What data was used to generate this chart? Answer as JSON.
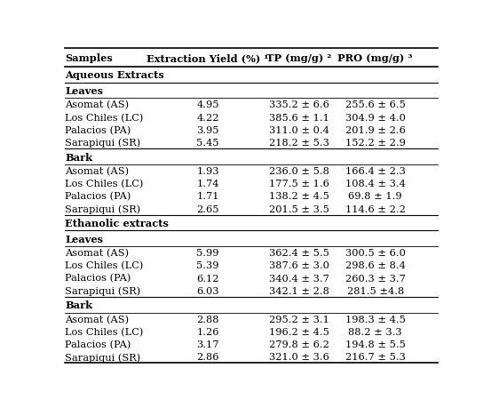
{
  "col_headers": [
    "Samples",
    "Extraction Yield (%) ¹",
    "TP (mg/g) ²",
    "PRO (mg/g) ³"
  ],
  "rows": [
    [
      "Asomat (AS)",
      "4.95",
      "335.2 ± 6.6",
      "255.6 ± 6.5"
    ],
    [
      "Los Chiles (LC)",
      "4.22",
      "385.6 ± 1.1",
      "304.9 ± 4.0"
    ],
    [
      "Palacios (PA)",
      "3.95",
      "311.0 ± 0.4",
      "201.9 ± 2.6"
    ],
    [
      "Sarapiqui (SR)",
      "5.45",
      "218.2 ± 5.3",
      "152.2 ± 2.9"
    ],
    [
      "Asomat (AS)",
      "1.93",
      "236.0 ± 5.8",
      "166.4 ± 2.3"
    ],
    [
      "Los Chiles (LC)",
      "1.74",
      "177.5 ± 1.6",
      "108.4 ± 3.4"
    ],
    [
      "Palacios (PA)",
      "1.71",
      "138.2 ± 4.5",
      "69.8 ± 1.9"
    ],
    [
      "Sarapiqui (SR)",
      "2.65",
      "201.5 ± 3.5",
      "114.6 ± 2.2"
    ],
    [
      "Asomat (AS)",
      "5.99",
      "362.4 ± 5.5",
      "300.5 ± 6.0"
    ],
    [
      "Los Chiles (LC)",
      "5.39",
      "387.6 ± 3.0",
      "298.6 ± 8.4"
    ],
    [
      "Palacios (PA)",
      "6.12",
      "340.4 ± 3.7",
      "260.3 ± 3.7"
    ],
    [
      "Sarapiqui (SR)",
      "6.03",
      "342.1 ± 2.8",
      "281.5 ±4.8"
    ],
    [
      "Asomat (AS)",
      "2.88",
      "295.2 ± 3.1",
      "198.3 ± 4.5"
    ],
    [
      "Los Chiles (LC)",
      "1.26",
      "196.2 ± 4.5",
      "88.2 ± 3.3"
    ],
    [
      "Palacios (PA)",
      "3.17",
      "279.8 ± 6.2",
      "194.8 ± 5.5"
    ],
    [
      "Sarapiqui (SR)",
      "2.86",
      "321.0 ± 3.6",
      "216.7 ± 5.3"
    ]
  ],
  "background_color": "#ffffff",
  "text_color": "#000000",
  "font_size": 8.2,
  "bold_font_size": 8.2
}
